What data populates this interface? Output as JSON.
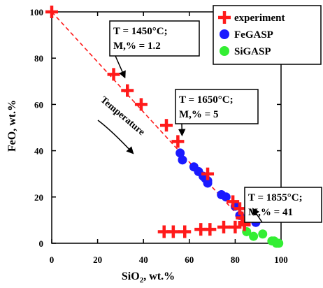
{
  "chart_data": {
    "type": "scatter",
    "xlabel": "SiO2, wt.%",
    "ylabel": "FeO, wt.%",
    "xlim": [
      0,
      100
    ],
    "ylim": [
      0,
      100
    ],
    "xticks": [
      0,
      20,
      40,
      60,
      80,
      100
    ],
    "yticks": [
      0,
      20,
      40,
      60,
      80,
      100
    ],
    "grid": false,
    "legend_position": "top-right",
    "series": [
      {
        "name": "experiment",
        "marker": "plus",
        "color": "#ff1a1a",
        "points": [
          {
            "x": 0,
            "y": 100
          },
          {
            "x": 27,
            "y": 73
          },
          {
            "x": 33,
            "y": 66
          },
          {
            "x": 39,
            "y": 60
          },
          {
            "x": 50,
            "y": 51
          },
          {
            "x": 55,
            "y": 44
          },
          {
            "x": 68,
            "y": 30
          },
          {
            "x": 79,
            "y": 18
          },
          {
            "x": 82,
            "y": 15
          },
          {
            "x": 83,
            "y": 11
          },
          {
            "x": 84,
            "y": 9
          },
          {
            "x": 49,
            "y": 5
          },
          {
            "x": 53,
            "y": 5
          },
          {
            "x": 58,
            "y": 5
          },
          {
            "x": 65,
            "y": 6
          },
          {
            "x": 69,
            "y": 6
          },
          {
            "x": 75,
            "y": 7
          },
          {
            "x": 80,
            "y": 7
          },
          {
            "x": 84,
            "y": 8
          }
        ]
      },
      {
        "name": "FeGASP",
        "marker": "circle",
        "color": "#1a1aff",
        "points": [
          {
            "x": 56,
            "y": 39
          },
          {
            "x": 57,
            "y": 36
          },
          {
            "x": 62,
            "y": 33
          },
          {
            "x": 64,
            "y": 31
          },
          {
            "x": 66,
            "y": 29
          },
          {
            "x": 67,
            "y": 28
          },
          {
            "x": 68,
            "y": 26
          },
          {
            "x": 68,
            "y": 27
          },
          {
            "x": 74,
            "y": 21
          },
          {
            "x": 76,
            "y": 20
          },
          {
            "x": 80,
            "y": 16
          },
          {
            "x": 82,
            "y": 12
          },
          {
            "x": 89,
            "y": 9
          }
        ]
      },
      {
        "name": "SiGASP",
        "marker": "circle",
        "color": "#33ee33",
        "points": [
          {
            "x": 85,
            "y": 5
          },
          {
            "x": 88,
            "y": 3
          },
          {
            "x": 92,
            "y": 4
          },
          {
            "x": 96,
            "y": 1
          },
          {
            "x": 97,
            "y": 1
          },
          {
            "x": 98,
            "y": 0
          },
          {
            "x": 99,
            "y": 0
          }
        ]
      }
    ],
    "dashed_line": {
      "from": [
        0,
        100
      ],
      "to": [
        85,
        8
      ],
      "color": "#ff1a1a"
    },
    "annotations": [
      {
        "lines": [
          "T = 1450°C;",
          "M,% = 1.2"
        ],
        "arrow_to": [
          30,
          70
        ]
      },
      {
        "lines": [
          "T = 1650°C;",
          "M,% = 5"
        ],
        "arrow_to": [
          55,
          45
        ]
      },
      {
        "lines": [
          "T = 1855°C;",
          "M,% = 41"
        ],
        "arrow_to": [
          86,
          13
        ]
      }
    ],
    "temperature_label": "Temperature"
  }
}
